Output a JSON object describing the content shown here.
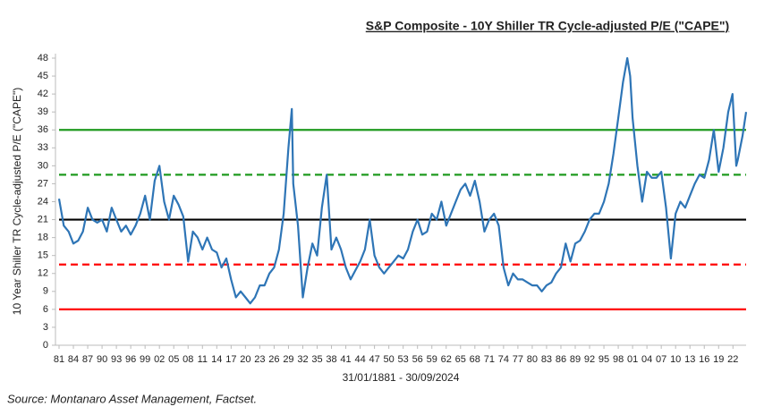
{
  "chart_data": {
    "type": "line",
    "title": "S&P Composite - 10Y Shiller TR Cycle-adjusted P/E (\"CAPE\")",
    "y_label": "10 Year Shiller TR Cycle-adjusted P/E (\"CAPE\")",
    "x_label": "31/01/1881 - 30/09/2024",
    "source": "Source: Montanaro Asset Management, Factset.",
    "color": "#2e75b6",
    "x": [
      1881,
      1882,
      1883,
      1884,
      1885,
      1886,
      1887,
      1888,
      1889,
      1890,
      1891,
      1892,
      1893,
      1894,
      1895,
      1896,
      1897,
      1898,
      1899,
      1900,
      1901,
      1902,
      1903,
      1904,
      1905,
      1906,
      1907,
      1908,
      1909,
      1910,
      1911,
      1912,
      1913,
      1914,
      1915,
      1916,
      1917,
      1918,
      1919,
      1920,
      1921,
      1922,
      1923,
      1924,
      1925,
      1926,
      1927,
      1928,
      1929,
      1929.7,
      1930,
      1931,
      1932,
      1933,
      1934,
      1935,
      1936,
      1937,
      1938,
      1939,
      1940,
      1941,
      1942,
      1943,
      1944,
      1945,
      1946,
      1947,
      1948,
      1949,
      1950,
      1951,
      1952,
      1953,
      1954,
      1955,
      1956,
      1957,
      1958,
      1959,
      1960,
      1961,
      1962,
      1963,
      1964,
      1965,
      1966,
      1967,
      1968,
      1969,
      1970,
      1971,
      1972,
      1973,
      1974,
      1975,
      1976,
      1977,
      1978,
      1979,
      1980,
      1981,
      1982,
      1983,
      1984,
      1985,
      1986,
      1987,
      1988,
      1989,
      1990,
      1991,
      1992,
      1993,
      1994,
      1995,
      1996,
      1997,
      1998,
      1999,
      1999.9,
      2000.5,
      2001,
      2002,
      2003,
      2004,
      2005,
      2006,
      2007,
      2008,
      2009,
      2010,
      2011,
      2012,
      2013,
      2014,
      2015,
      2016,
      2017,
      2018,
      2019,
      2020,
      2021,
      2021.9,
      2022.7,
      2023,
      2024,
      2024.75
    ],
    "values": [
      24.5,
      20,
      19,
      17,
      17.5,
      19,
      23,
      21,
      20.5,
      21,
      19,
      23,
      21,
      19,
      20,
      18.5,
      20,
      22,
      25,
      21,
      27.5,
      30,
      24,
      21,
      25,
      23.5,
      21.5,
      14,
      19,
      18,
      16,
      18,
      16,
      15.5,
      13,
      14.5,
      11,
      8,
      9,
      8,
      7,
      8,
      10,
      10,
      12,
      13,
      16,
      22,
      33,
      39.5,
      27,
      20,
      8,
      13,
      17,
      15,
      23,
      28.5,
      16,
      18,
      16,
      13,
      11,
      12.5,
      14,
      16,
      21,
      15,
      13,
      12,
      13,
      14,
      15,
      14.5,
      16,
      19,
      21,
      18.5,
      19,
      22,
      21,
      24,
      20,
      22,
      24,
      26,
      27,
      25,
      27.5,
      24,
      19,
      21,
      22,
      20,
      13,
      10,
      12,
      11,
      11,
      10.5,
      10,
      10,
      9,
      10,
      10.5,
      12,
      13,
      17,
      14,
      17,
      17.5,
      19,
      21,
      22,
      22,
      24,
      27,
      32,
      38,
      44,
      48,
      45,
      38,
      30,
      24,
      29,
      28,
      28,
      29,
      23,
      14.5,
      22,
      24,
      23,
      25,
      27,
      28.5,
      28,
      31,
      36,
      29,
      33,
      39,
      42,
      30,
      31,
      35,
      39
    ],
    "xlim": [
      1881,
      2024.75
    ],
    "xticks": [
      {
        "value": 1881,
        "label": "81"
      },
      {
        "value": 1884,
        "label": "84"
      },
      {
        "value": 1887,
        "label": "87"
      },
      {
        "value": 1890,
        "label": "90"
      },
      {
        "value": 1893,
        "label": "93"
      },
      {
        "value": 1896,
        "label": "96"
      },
      {
        "value": 1899,
        "label": "99"
      },
      {
        "value": 1902,
        "label": "02"
      },
      {
        "value": 1905,
        "label": "05"
      },
      {
        "value": 1908,
        "label": "08"
      },
      {
        "value": 1911,
        "label": "11"
      },
      {
        "value": 1914,
        "label": "14"
      },
      {
        "value": 1917,
        "label": "17"
      },
      {
        "value": 1920,
        "label": "20"
      },
      {
        "value": 1923,
        "label": "23"
      },
      {
        "value": 1926,
        "label": "26"
      },
      {
        "value": 1929,
        "label": "29"
      },
      {
        "value": 1932,
        "label": "32"
      },
      {
        "value": 1935,
        "label": "35"
      },
      {
        "value": 1938,
        "label": "38"
      },
      {
        "value": 1941,
        "label": "41"
      },
      {
        "value": 1944,
        "label": "44"
      },
      {
        "value": 1947,
        "label": "47"
      },
      {
        "value": 1950,
        "label": "50"
      },
      {
        "value": 1953,
        "label": "53"
      },
      {
        "value": 1956,
        "label": "56"
      },
      {
        "value": 1959,
        "label": "59"
      },
      {
        "value": 1962,
        "label": "62"
      },
      {
        "value": 1965,
        "label": "65"
      },
      {
        "value": 1968,
        "label": "68"
      },
      {
        "value": 1971,
        "label": "71"
      },
      {
        "value": 1974,
        "label": "74"
      },
      {
        "value": 1977,
        "label": "77"
      },
      {
        "value": 1980,
        "label": "80"
      },
      {
        "value": 1983,
        "label": "83"
      },
      {
        "value": 1986,
        "label": "86"
      },
      {
        "value": 1989,
        "label": "89"
      },
      {
        "value": 1992,
        "label": "92"
      },
      {
        "value": 1995,
        "label": "95"
      },
      {
        "value": 1998,
        "label": "98"
      },
      {
        "value": 2001,
        "label": "01"
      },
      {
        "value": 2004,
        "label": "04"
      },
      {
        "value": 2007,
        "label": "07"
      },
      {
        "value": 2010,
        "label": "10"
      },
      {
        "value": 2013,
        "label": "13"
      },
      {
        "value": 2016,
        "label": "16"
      },
      {
        "value": 2019,
        "label": "19"
      },
      {
        "value": 2022,
        "label": "22"
      }
    ],
    "ylim": [
      0,
      48
    ],
    "yticks": [
      0,
      3,
      6,
      9,
      12,
      15,
      18,
      21,
      24,
      27,
      30,
      33,
      36,
      39,
      42,
      45,
      48
    ],
    "reference_lines": [
      {
        "value": 36,
        "color": "#1f9a1f",
        "dashed": false
      },
      {
        "value": 28.5,
        "color": "#1f9a1f",
        "dashed": true
      },
      {
        "value": 21,
        "color": "#000000",
        "dashed": false
      },
      {
        "value": 13.5,
        "color": "#ff0000",
        "dashed": true
      },
      {
        "value": 6,
        "color": "#ff0000",
        "dashed": false
      }
    ]
  }
}
